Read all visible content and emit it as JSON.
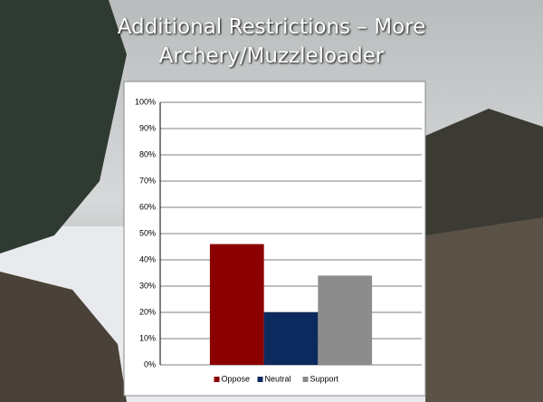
{
  "chart_data": {
    "type": "bar",
    "title": "Additional Restrictions – More Archery/Muzzleloader",
    "categories": [
      null
    ],
    "series": [
      {
        "name": "Oppose",
        "color": "#8b0000",
        "values": [
          46
        ]
      },
      {
        "name": "Neutral",
        "color": "#0d2a5e",
        "values": [
          20
        ]
      },
      {
        "name": "Support",
        "color": "#8c8c8c",
        "values": [
          34
        ]
      }
    ],
    "ylim": [
      0,
      100
    ],
    "yticks": [
      {
        "value": 0,
        "label": "0%"
      },
      {
        "value": 10,
        "label": "10%"
      },
      {
        "value": 20,
        "label": "20%"
      },
      {
        "value": 30,
        "label": "30%"
      },
      {
        "value": 40,
        "label": "40%"
      },
      {
        "value": 50,
        "label": "50%"
      },
      {
        "value": 60,
        "label": "60%"
      },
      {
        "value": 70,
        "label": "70%"
      },
      {
        "value": 80,
        "label": "80%"
      },
      {
        "value": 90,
        "label": "90%"
      },
      {
        "value": 100,
        "label": "100%"
      }
    ],
    "grid": true,
    "legend": "bottom"
  }
}
